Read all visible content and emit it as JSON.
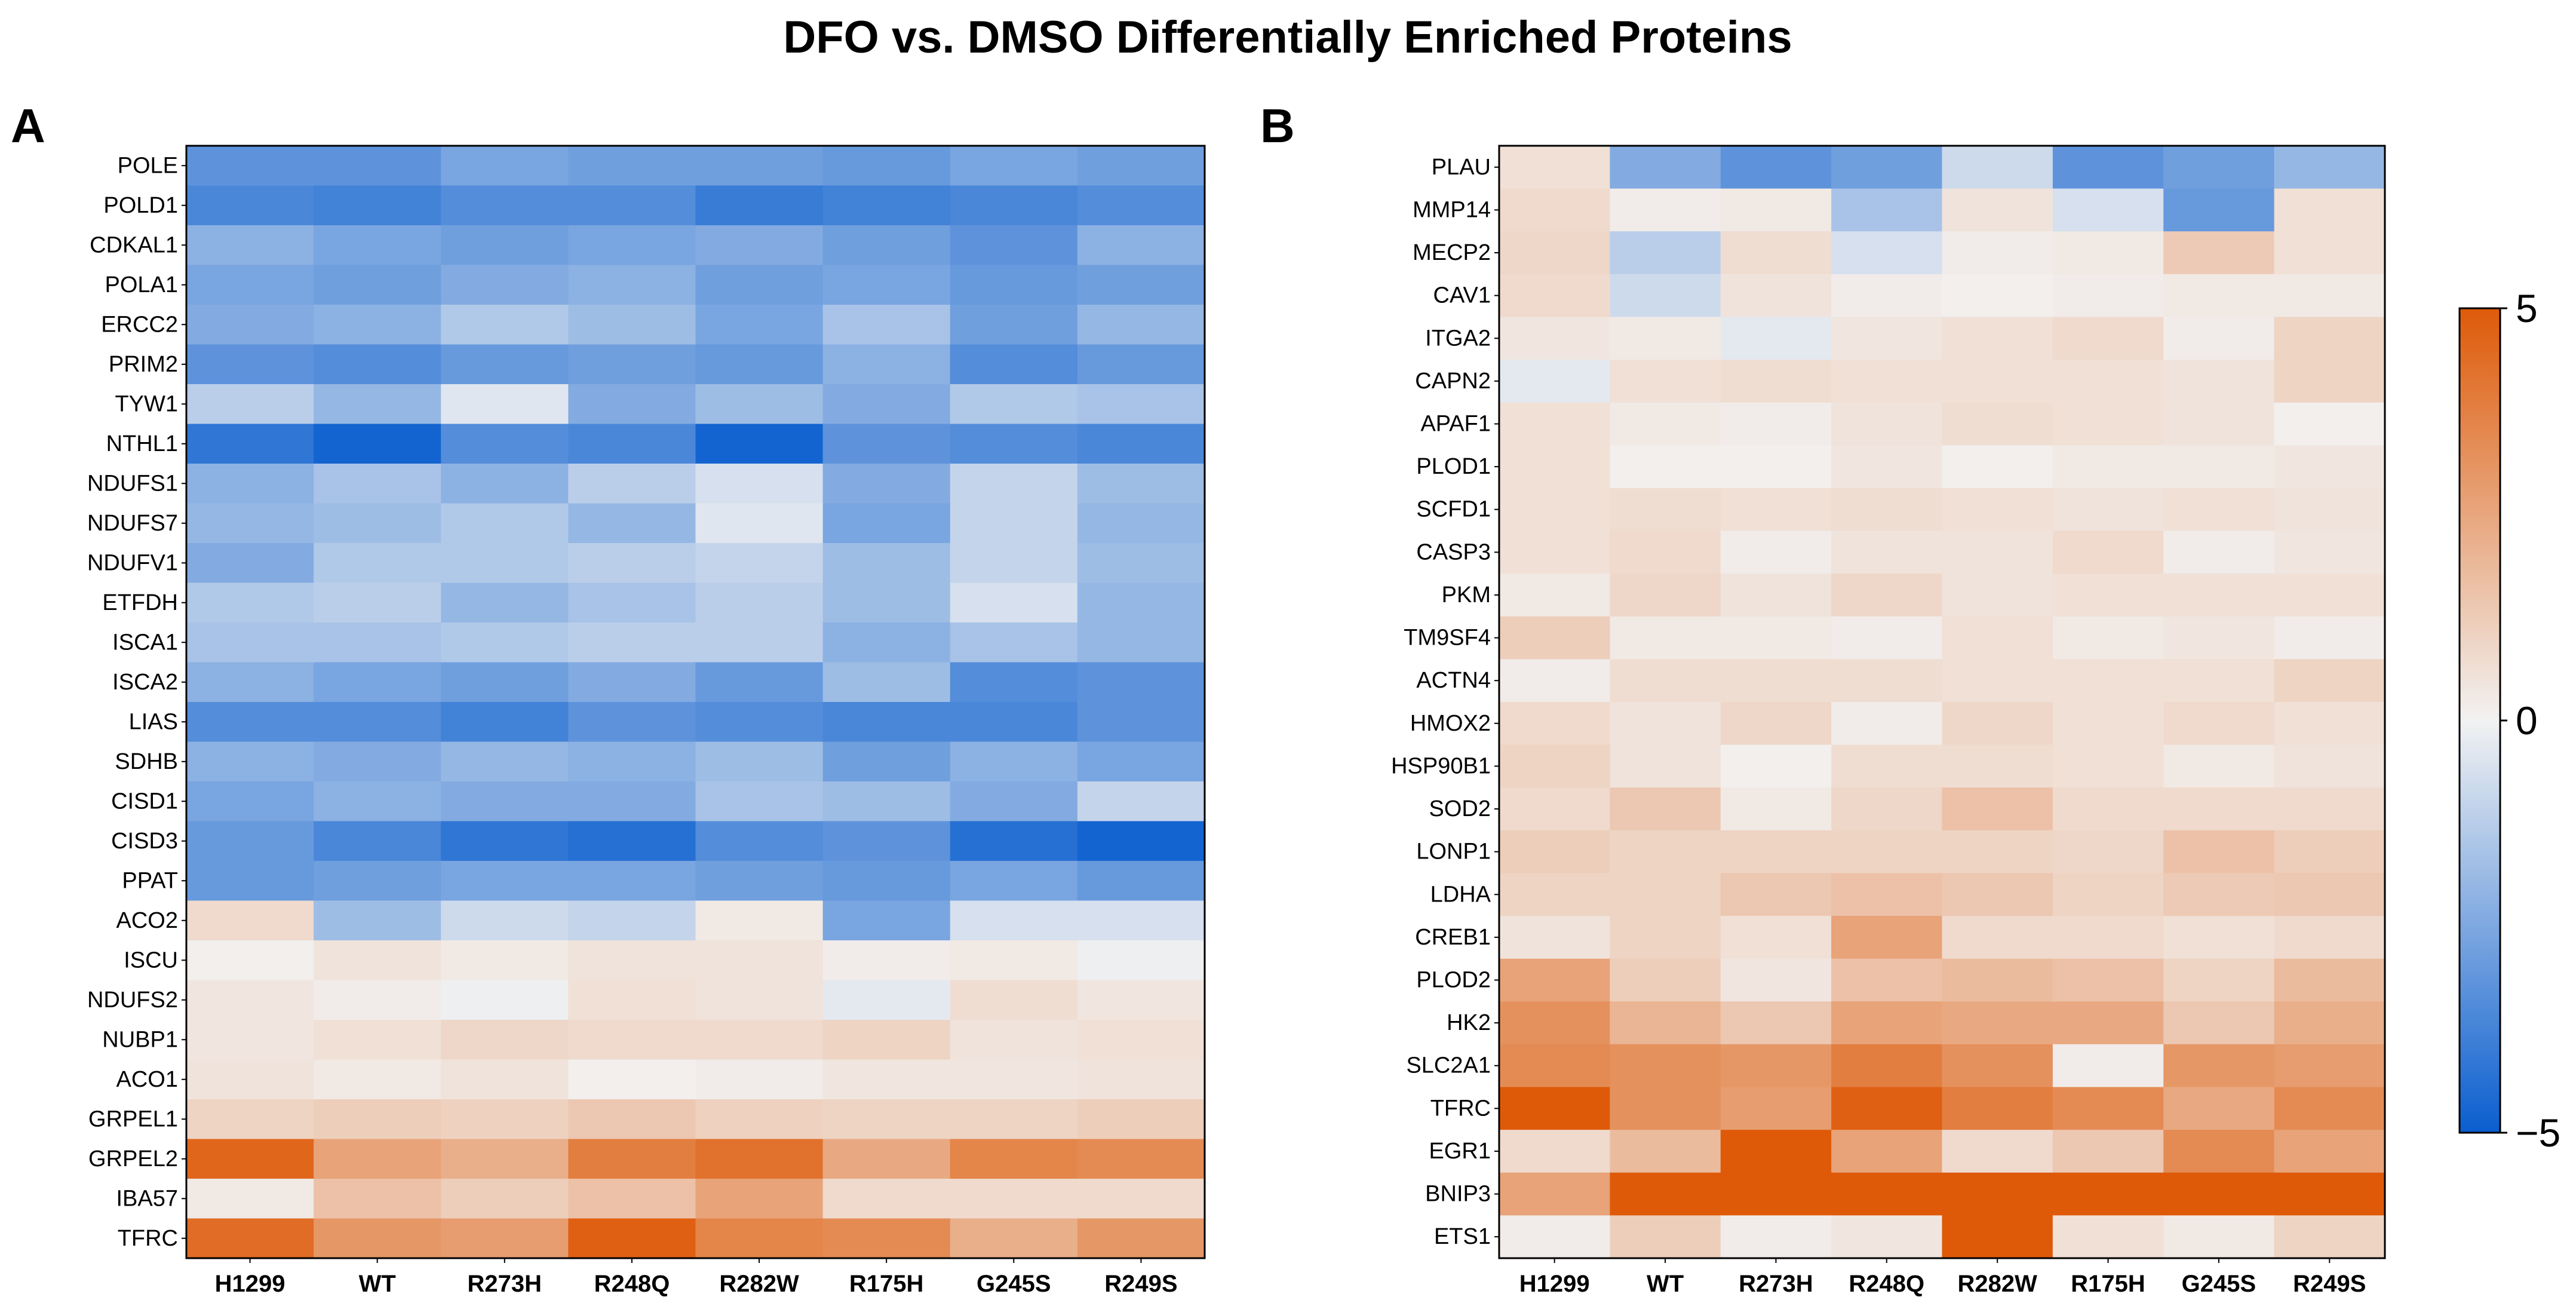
{
  "title": "DFO vs. DMSO Differentially Enriched Proteins",
  "colors": {
    "negative": "#0a5ecf",
    "neutral": "#f2f2f2",
    "positive": "#de5a09"
  },
  "chart_data": [
    {
      "type": "heatmap",
      "panel": "A",
      "columns": [
        "H1299",
        "WT",
        "R273H",
        "R248Q",
        "R282W",
        "R175H",
        "G245S",
        "R249S"
      ],
      "rows": [
        "POLE",
        "POLD1",
        "CDKAL1",
        "POLA1",
        "ERCC2",
        "PRIM2",
        "TYW1",
        "NTHL1",
        "NDUFS1",
        "NDUFS7",
        "NDUFV1",
        "ETFDH",
        "ISCA1",
        "ISCA2",
        "LIAS",
        "SDHB",
        "CISD1",
        "CISD3",
        "PPAT",
        "ACO2",
        "ISCU",
        "NDUFS2",
        "NUBP1",
        "ACO1",
        "GRPEL1",
        "GRPEL2",
        "IBA57",
        "TFRC"
      ],
      "values": [
        [
          -3.2,
          -3.2,
          -2.6,
          -2.8,
          -2.8,
          -3.0,
          -2.6,
          -2.8
        ],
        [
          -3.6,
          -3.8,
          -3.4,
          -3.4,
          -4.0,
          -3.8,
          -3.6,
          -3.4
        ],
        [
          -2.2,
          -2.6,
          -2.8,
          -2.6,
          -2.4,
          -2.8,
          -3.2,
          -2.2
        ],
        [
          -2.6,
          -2.8,
          -2.4,
          -2.2,
          -2.8,
          -2.6,
          -3.0,
          -2.8
        ],
        [
          -2.4,
          -2.2,
          -1.4,
          -1.8,
          -2.6,
          -1.6,
          -2.8,
          -2.0
        ],
        [
          -3.2,
          -3.4,
          -3.0,
          -2.8,
          -3.0,
          -2.2,
          -3.4,
          -3.0
        ],
        [
          -1.2,
          -2.0,
          -0.4,
          -2.4,
          -1.8,
          -2.4,
          -1.4,
          -1.6
        ],
        [
          -4.2,
          -4.8,
          -3.4,
          -3.6,
          -4.8,
          -3.2,
          -3.4,
          -3.6
        ],
        [
          -2.2,
          -1.6,
          -2.2,
          -1.2,
          -0.6,
          -2.4,
          -1.0,
          -1.8
        ],
        [
          -2.0,
          -1.8,
          -1.4,
          -2.0,
          -0.4,
          -2.6,
          -1.0,
          -2.0
        ],
        [
          -2.4,
          -1.4,
          -1.4,
          -1.2,
          -1.0,
          -1.8,
          -1.0,
          -1.8
        ],
        [
          -1.4,
          -1.2,
          -2.0,
          -1.6,
          -1.2,
          -1.8,
          -0.6,
          -2.0
        ],
        [
          -1.6,
          -1.6,
          -1.4,
          -1.2,
          -1.2,
          -2.2,
          -1.6,
          -2.0
        ],
        [
          -2.2,
          -2.6,
          -2.8,
          -2.4,
          -3.0,
          -1.8,
          -3.4,
          -3.2
        ],
        [
          -3.4,
          -3.4,
          -3.8,
          -3.2,
          -3.4,
          -3.6,
          -3.6,
          -3.2
        ],
        [
          -2.2,
          -2.4,
          -2.0,
          -2.2,
          -1.8,
          -2.8,
          -2.2,
          -2.6
        ],
        [
          -2.6,
          -2.2,
          -2.4,
          -2.4,
          -1.6,
          -1.8,
          -2.4,
          -1.0
        ],
        [
          -3.0,
          -3.6,
          -4.2,
          -4.4,
          -3.4,
          -3.2,
          -4.4,
          -4.8
        ],
        [
          -3.0,
          -2.8,
          -2.6,
          -2.6,
          -2.8,
          -3.0,
          -2.6,
          -3.0
        ],
        [
          0.8,
          -1.8,
          -0.8,
          -1.0,
          0.3,
          -2.6,
          -0.6,
          -0.6
        ],
        [
          0.1,
          0.5,
          0.3,
          0.5,
          0.5,
          0.2,
          0.3,
          -0.1
        ],
        [
          0.4,
          0.2,
          -0.1,
          0.6,
          0.5,
          -0.3,
          0.7,
          0.4
        ],
        [
          0.4,
          0.6,
          0.9,
          0.8,
          0.8,
          1.0,
          0.5,
          0.6
        ],
        [
          0.5,
          0.3,
          0.5,
          0.1,
          0.2,
          0.4,
          0.4,
          0.5
        ],
        [
          1.0,
          1.2,
          1.1,
          1.4,
          1.1,
          1.0,
          1.0,
          1.2
        ],
        [
          4.6,
          2.6,
          2.2,
          3.8,
          4.2,
          2.4,
          3.6,
          3.4
        ],
        [
          0.3,
          1.6,
          1.2,
          1.6,
          2.6,
          0.8,
          0.8,
          0.8
        ],
        [
          4.4,
          3.0,
          2.8,
          4.8,
          3.6,
          3.4,
          2.2,
          3.0
        ]
      ]
    },
    {
      "type": "heatmap",
      "panel": "B",
      "columns": [
        "H1299",
        "WT",
        "R273H",
        "R248Q",
        "R282W",
        "R175H",
        "G245S",
        "R249S"
      ],
      "rows": [
        "PLAU",
        "MMP14",
        "MECP2",
        "CAV1",
        "ITGA2",
        "CAPN2",
        "APAF1",
        "PLOD1",
        "SCFD1",
        "CASP3",
        "PKM",
        "TM9SF4",
        "ACTN4",
        "HMOX2",
        "HSP90B1",
        "SOD2",
        "LONP1",
        "LDHA",
        "CREB1",
        "PLOD2",
        "HK2",
        "SLC2A1",
        "TFRC",
        "EGR1",
        "BNIP3",
        "ETS1"
      ],
      "values": [
        [
          0.6,
          -2.4,
          -3.2,
          -2.8,
          -0.8,
          -3.2,
          -2.8,
          -2.0
        ],
        [
          0.8,
          0.2,
          0.3,
          -1.6,
          0.5,
          -0.6,
          -3.0,
          0.6
        ],
        [
          0.9,
          -1.2,
          0.7,
          -0.6,
          0.2,
          0.3,
          1.3,
          0.6
        ],
        [
          0.8,
          -0.8,
          0.5,
          0.2,
          0.1,
          0.2,
          0.3,
          0.3
        ],
        [
          0.4,
          0.3,
          -0.3,
          0.4,
          0.6,
          0.8,
          0.2,
          1.0
        ],
        [
          -0.3,
          0.6,
          0.7,
          0.6,
          0.6,
          0.6,
          0.5,
          1.0
        ],
        [
          0.6,
          0.3,
          0.2,
          0.5,
          0.7,
          0.6,
          0.5,
          0.1
        ],
        [
          0.6,
          0.1,
          0.1,
          0.4,
          0.1,
          0.3,
          0.3,
          0.4
        ],
        [
          0.6,
          0.7,
          0.6,
          0.7,
          0.6,
          0.5,
          0.6,
          0.5
        ],
        [
          0.6,
          0.8,
          0.2,
          0.5,
          0.5,
          0.8,
          0.2,
          0.4
        ],
        [
          0.3,
          0.9,
          0.5,
          0.9,
          0.5,
          0.6,
          0.6,
          0.6
        ],
        [
          1.2,
          0.3,
          0.3,
          0.2,
          0.6,
          0.3,
          0.4,
          0.2
        ],
        [
          0.2,
          0.7,
          0.7,
          0.7,
          0.6,
          0.6,
          0.6,
          1.0
        ],
        [
          0.8,
          0.5,
          0.9,
          0.2,
          0.9,
          0.6,
          0.8,
          0.6
        ],
        [
          1.0,
          0.5,
          0.1,
          0.7,
          0.7,
          0.6,
          0.3,
          0.5
        ],
        [
          0.8,
          1.4,
          0.3,
          0.9,
          1.6,
          0.8,
          0.8,
          0.8
        ],
        [
          1.2,
          1.0,
          1.0,
          1.0,
          1.0,
          0.9,
          1.6,
          1.2
        ],
        [
          1.0,
          1.0,
          1.4,
          1.6,
          1.4,
          1.0,
          1.3,
          1.4
        ],
        [
          0.5,
          1.0,
          0.6,
          2.6,
          0.8,
          0.8,
          0.6,
          0.8
        ],
        [
          2.6,
          1.2,
          0.4,
          1.6,
          1.8,
          1.6,
          1.0,
          1.8
        ],
        [
          3.2,
          2.0,
          1.4,
          2.6,
          2.4,
          2.4,
          1.4,
          2.2
        ],
        [
          3.4,
          3.2,
          3.0,
          3.8,
          3.2,
          0.2,
          3.0,
          2.8
        ],
        [
          5.0,
          3.2,
          2.8,
          4.8,
          3.8,
          3.4,
          2.4,
          3.4
        ],
        [
          0.8,
          1.8,
          5.2,
          2.6,
          0.8,
          1.4,
          3.4,
          2.6
        ],
        [
          2.6,
          5.0,
          5.2,
          5.0,
          5.0,
          5.0,
          5.0,
          5.0
        ],
        [
          0.2,
          1.2,
          0.2,
          0.4,
          5.2,
          0.6,
          0.3,
          1.0
        ]
      ]
    }
  ],
  "colorbar": {
    "min": -5,
    "max": 5,
    "ticks": [
      "5",
      "0",
      "−5"
    ]
  }
}
